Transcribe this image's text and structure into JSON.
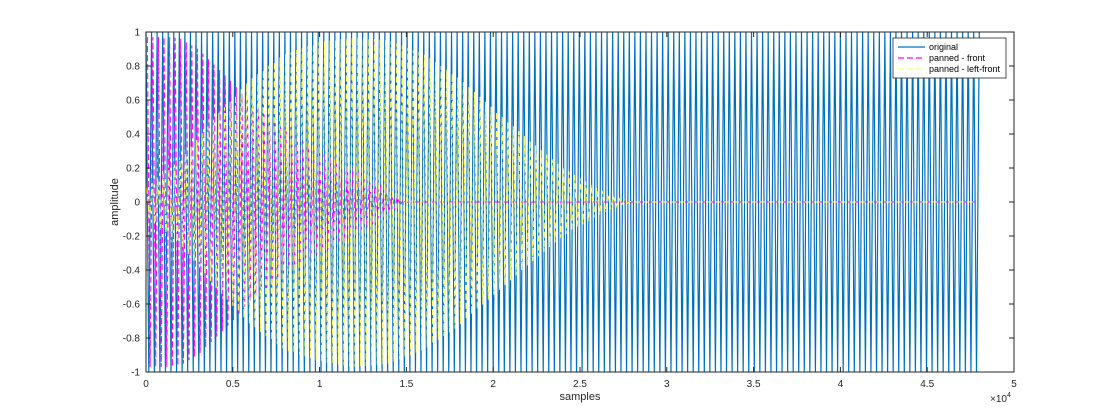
{
  "chart_data": {
    "type": "line",
    "xlabel": "samples",
    "ylabel": "amplitude",
    "xlim": [
      0,
      50000
    ],
    "ylim": [
      -1,
      1
    ],
    "x_exponent_label": "×10",
    "x_exponent_power": "4",
    "x_ticks": [
      0,
      5000,
      10000,
      15000,
      20000,
      25000,
      30000,
      35000,
      40000,
      45000,
      50000
    ],
    "x_tick_labels": [
      "0",
      "0.5",
      "1",
      "1.5",
      "2",
      "2.5",
      "3",
      "3.5",
      "4",
      "4.5",
      "5"
    ],
    "y_ticks": [
      -1,
      -0.8,
      -0.6,
      -0.4,
      -0.2,
      0,
      0.2,
      0.4,
      0.6,
      0.8,
      1
    ],
    "y_tick_labels": [
      "-1",
      "-0.8",
      "-0.6",
      "-0.4",
      "-0.2",
      "0",
      "0.2",
      "0.4",
      "0.6",
      "0.8",
      "1"
    ],
    "legend_position": "top-right",
    "series": [
      {
        "name": "original",
        "color": "#0072BD",
        "style": "solid",
        "waveform": "constant-amplitude oscillation",
        "x_range": [
          0,
          48000
        ],
        "envelope": {
          "x": [
            0,
            48000
          ],
          "amplitude": [
            1,
            1
          ]
        }
      },
      {
        "name": "panned - front",
        "color": "#FF00FF",
        "style": "dashed",
        "waveform": "oscillation with decaying envelope",
        "x_range": [
          0,
          48000
        ],
        "envelope": {
          "x": [
            0,
            1500,
            2000,
            3000,
            4000,
            5000,
            6000,
            8000,
            10000,
            12000,
            13500,
            15000,
            48000
          ],
          "amplitude": [
            0.97,
            0.97,
            0.96,
            0.9,
            0.8,
            0.7,
            0.58,
            0.42,
            0.3,
            0.2,
            0.1,
            0.0,
            0.0
          ]
        }
      },
      {
        "name": "panned - left-front",
        "color": "#FFFF66",
        "style": "dashed",
        "waveform": "oscillation with rising then falling envelope",
        "x_range": [
          0,
          48000
        ],
        "envelope": {
          "x": [
            0,
            2000,
            4000,
            6000,
            8000,
            10000,
            12000,
            14000,
            16000,
            18000,
            20000,
            22000,
            24000,
            26000,
            27000,
            28000,
            48000
          ],
          "amplitude": [
            0.08,
            0.25,
            0.5,
            0.72,
            0.87,
            0.94,
            0.97,
            0.95,
            0.87,
            0.73,
            0.55,
            0.37,
            0.2,
            0.08,
            0.03,
            0.0,
            0.0
          ]
        }
      }
    ]
  }
}
